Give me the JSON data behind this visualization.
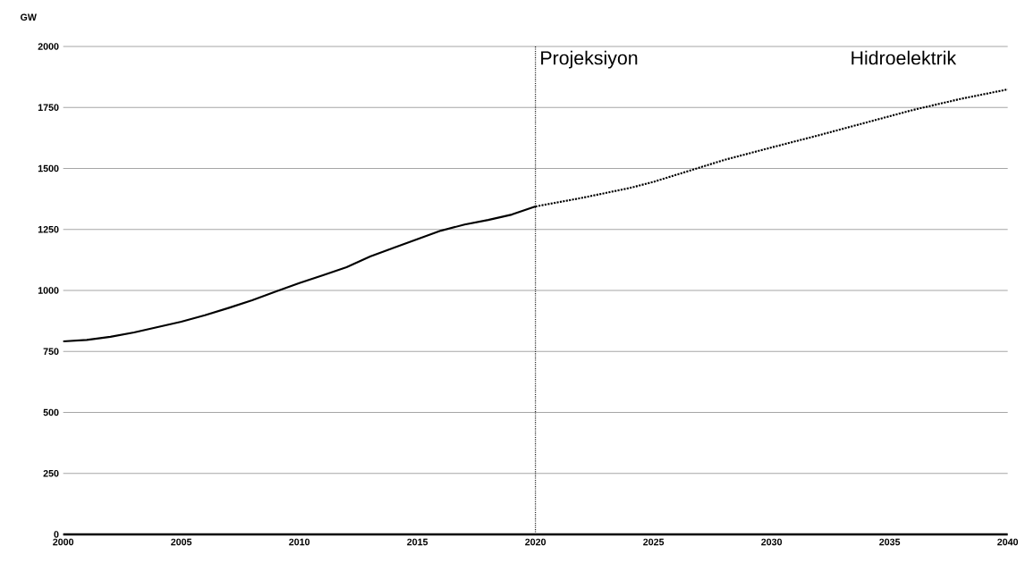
{
  "chart_data": {
    "type": "line",
    "ylabel": "GW",
    "xlim": [
      2000,
      2040
    ],
    "ylim": [
      0,
      2000
    ],
    "xticks": [
      2000,
      2005,
      2010,
      2015,
      2020,
      2025,
      2030,
      2035,
      2040
    ],
    "yticks": [
      0,
      250,
      500,
      750,
      1000,
      1250,
      1500,
      1750,
      2000
    ],
    "grid": "y",
    "series": [
      {
        "color": "#000000",
        "line_style": "solid",
        "x": [
          2000,
          2001,
          2002,
          2003,
          2004,
          2005,
          2006,
          2007,
          2008,
          2009,
          2010,
          2011,
          2012,
          2013,
          2014,
          2015,
          2016,
          2017,
          2018,
          2019,
          2020
        ],
        "values": [
          791,
          797,
          810,
          828,
          850,
          872,
          898,
          928,
          960,
          995,
          1030,
          1062,
          1095,
          1139,
          1175,
          1210,
          1245,
          1270,
          1289,
          1311,
          1344
        ]
      },
      {
        "color": "#000000",
        "line_style": "dotted",
        "x": [
          2020,
          2022,
          2024,
          2025,
          2026,
          2028,
          2030,
          2032,
          2034,
          2036,
          2038,
          2040
        ],
        "values": [
          1344,
          1380,
          1420,
          1445,
          1475,
          1535,
          1586,
          1636,
          1688,
          1740,
          1785,
          1824
        ]
      }
    ],
    "ref_lines": [
      {
        "axis": "x",
        "value": 2020,
        "label": "Projeksiyon",
        "line_style": "dotted"
      }
    ],
    "annotations": [
      "Hidroelektrik"
    ]
  }
}
